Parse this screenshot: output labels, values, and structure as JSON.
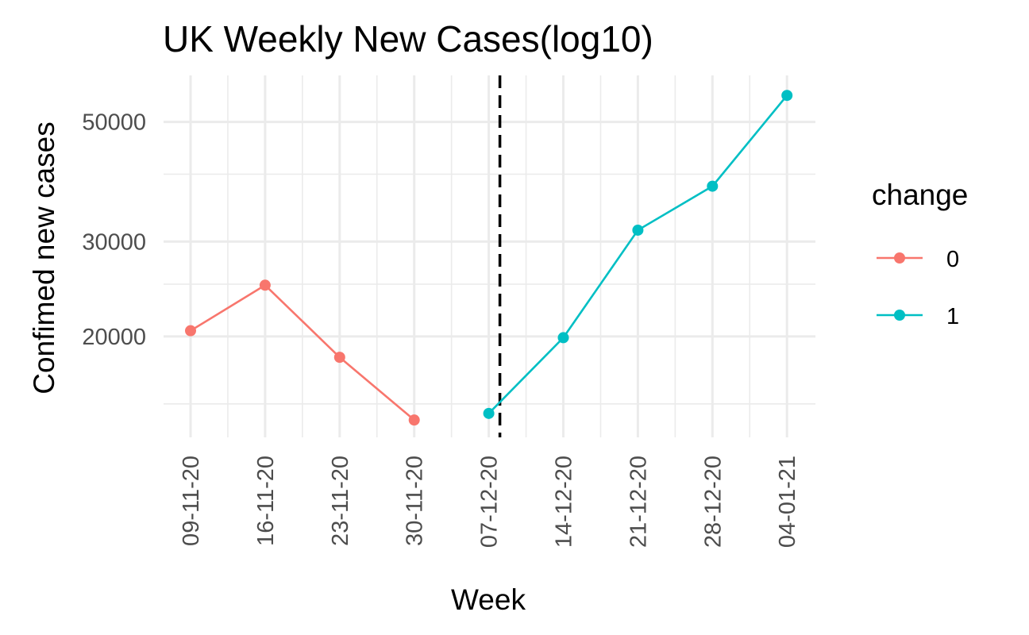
{
  "chart_data": {
    "type": "line",
    "title": "UK Weekly New Cases(log10)",
    "xlabel": "Week",
    "ylabel": "Confimed new cases",
    "y_scale": "log10",
    "ylim": [
      13000,
      61000
    ],
    "y_ticks": [
      20000,
      30000,
      50000
    ],
    "y_tick_labels": [
      "20000",
      "30000",
      "50000"
    ],
    "y_minor_ticks": [
      15000,
      25000,
      40000
    ],
    "categories": [
      "09-11-20",
      "16-11-20",
      "23-11-20",
      "30-11-20",
      "07-12-20",
      "14-12-20",
      "21-12-20",
      "28-12-20",
      "04-01-21"
    ],
    "vline_after_category": "07-12-20",
    "grid": true,
    "legend": {
      "title": "change",
      "position": "right"
    },
    "series": [
      {
        "name": "0",
        "color": "#F8766D",
        "values": [
          20500,
          24900,
          18300,
          14000,
          null,
          null,
          null,
          null,
          null
        ]
      },
      {
        "name": "1",
        "color": "#00BFC4",
        "values": [
          null,
          null,
          null,
          null,
          14400,
          19900,
          31500,
          38000,
          56000
        ]
      }
    ]
  }
}
